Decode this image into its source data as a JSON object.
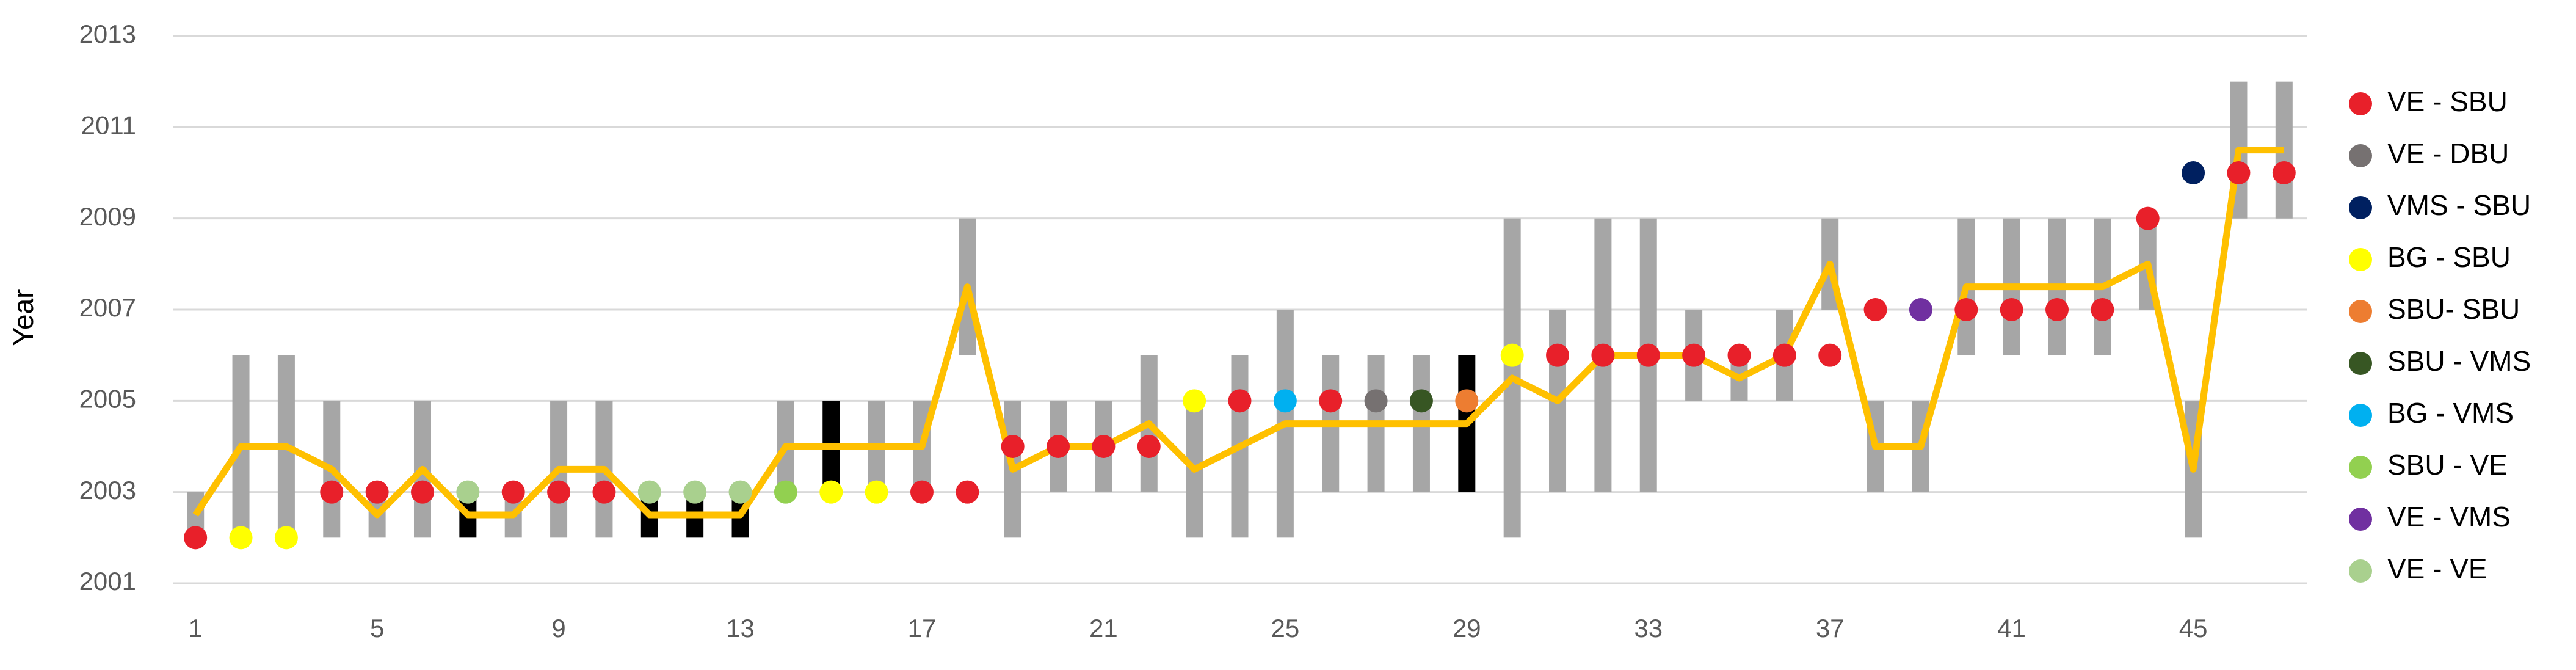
{
  "chart_data": {
    "type": "scatter",
    "y_label": "Year",
    "x": [
      1,
      2,
      3,
      4,
      5,
      6,
      7,
      8,
      9,
      10,
      11,
      12,
      13,
      14,
      15,
      16,
      17,
      18,
      19,
      20,
      21,
      22,
      23,
      24,
      25,
      26,
      27,
      28,
      29,
      30,
      31,
      32,
      33,
      34,
      35,
      36,
      37,
      38,
      39,
      40,
      41,
      42,
      43,
      44,
      45,
      46,
      47
    ],
    "xlim": [
      0.5,
      47.5
    ],
    "xticks": [
      1,
      5,
      9,
      13,
      17,
      21,
      25,
      29,
      33,
      37,
      41,
      45
    ],
    "ylim": [
      2001,
      2013
    ],
    "yticks": [
      2001,
      2003,
      2005,
      2007,
      2009,
      2011,
      2013
    ],
    "grid": true,
    "legend": "right",
    "ranges": {
      "low": [
        2002,
        2002,
        2002,
        2002,
        2002,
        2002,
        2002,
        2002,
        2002,
        2002,
        2002,
        2002,
        2002,
        2003,
        2003,
        2003,
        2003,
        2006,
        2002,
        2003,
        2003,
        2003,
        2002,
        2002,
        2002,
        2003,
        2003,
        2003,
        2003,
        2002,
        2003,
        2003,
        2003,
        2005,
        2005,
        2005,
        2007,
        2003,
        2003,
        2006,
        2006,
        2006,
        2006,
        2007,
        2002,
        2009,
        2009
      ],
      "high": [
        2003,
        2006,
        2006,
        2005,
        2003,
        2005,
        2003,
        2003,
        2005,
        2005,
        2003,
        2003,
        2003,
        2005,
        2005,
        2005,
        2005,
        2009,
        2005,
        2005,
        2005,
        2006,
        2005,
        2006,
        2007,
        2006,
        2006,
        2006,
        2006,
        2009,
        2007,
        2009,
        2009,
        2007,
        2006,
        2007,
        2009,
        2005,
        2005,
        2009,
        2009,
        2009,
        2009,
        2009,
        2005,
        2012,
        2012
      ],
      "colors": [
        "#a6a6a6",
        "#a6a6a6",
        "#a6a6a6",
        "#a6a6a6",
        "#a6a6a6",
        "#a6a6a6",
        "#000000",
        "#a6a6a6",
        "#a6a6a6",
        "#a6a6a6",
        "#000000",
        "#000000",
        "#000000",
        "#a6a6a6",
        "#000000",
        "#a6a6a6",
        "#a6a6a6",
        "#a6a6a6",
        "#a6a6a6",
        "#a6a6a6",
        "#a6a6a6",
        "#a6a6a6",
        "#a6a6a6",
        "#a6a6a6",
        "#a6a6a6",
        "#a6a6a6",
        "#a6a6a6",
        "#a6a6a6",
        "#000000",
        "#a6a6a6",
        "#a6a6a6",
        "#a6a6a6",
        "#a6a6a6",
        "#a6a6a6",
        "#a6a6a6",
        "#a6a6a6",
        "#a6a6a6",
        "#a6a6a6",
        "#a6a6a6",
        "#a6a6a6",
        "#a6a6a6",
        "#a6a6a6",
        "#a6a6a6",
        "#a6a6a6",
        "#a6a6a6",
        "#a6a6a6",
        "#a6a6a6"
      ]
    },
    "line": {
      "color": "#ffc000",
      "values": [
        2002.5,
        2004,
        2004,
        2003.5,
        2002.5,
        2003.5,
        2002.5,
        2002.5,
        2003.5,
        2003.5,
        2002.5,
        2002.5,
        2002.5,
        2004,
        2004,
        2004,
        2004,
        2007.5,
        2003.5,
        2004,
        2004,
        2004.5,
        2003.5,
        2004,
        2004.5,
        2004.5,
        2004.5,
        2004.5,
        2004.5,
        2005.5,
        2005,
        2006,
        2006,
        2006,
        2005.5,
        2006,
        2008,
        2004,
        2004,
        2007.5,
        2007.5,
        2007.5,
        2007.5,
        2008,
        2003.5,
        2010.5,
        2010.5
      ]
    },
    "series": [
      {
        "name": "VE - SBU",
        "color": "#e8202a",
        "x": [
          1,
          4,
          5,
          6,
          8,
          9,
          10,
          17,
          18,
          19,
          20,
          21,
          22,
          24,
          26,
          31,
          32,
          33,
          34,
          35,
          36,
          37,
          38,
          40,
          41,
          42,
          43,
          44,
          46,
          47
        ],
        "values": [
          2002,
          2003,
          2003,
          2003,
          2003,
          2003,
          2003,
          2003,
          2003,
          2004,
          2004,
          2004,
          2004,
          2005,
          2005,
          2006,
          2006,
          2006,
          2006,
          2006,
          2006,
          2006,
          2007,
          2007,
          2007,
          2007,
          2007,
          2009,
          2010,
          2010
        ]
      },
      {
        "name": "VE - DBU",
        "color": "#767171",
        "x": [
          27
        ],
        "values": [
          2005
        ]
      },
      {
        "name": "VMS - SBU",
        "color": "#002060",
        "x": [
          45
        ],
        "values": [
          2010
        ]
      },
      {
        "name": "BG - SBU",
        "color": "#ffff00",
        "x": [
          2,
          3,
          15,
          16,
          23,
          30
        ],
        "values": [
          2002,
          2002,
          2003,
          2003,
          2005,
          2006
        ]
      },
      {
        "name": "SBU- SBU",
        "color": "#ed7d31",
        "x": [
          29
        ],
        "values": [
          2005
        ]
      },
      {
        "name": "SBU - VMS",
        "color": "#375623",
        "x": [
          28
        ],
        "values": [
          2005
        ]
      },
      {
        "name": "BG - VMS",
        "color": "#00b0f0",
        "x": [
          25
        ],
        "values": [
          2005
        ]
      },
      {
        "name": "SBU - VE",
        "color": "#92d050",
        "x": [
          14
        ],
        "values": [
          2003
        ]
      },
      {
        "name": "VE - VMS",
        "color": "#7030a0",
        "x": [
          39
        ],
        "values": [
          2007
        ]
      },
      {
        "name": "VE - VE",
        "color": "#a9d08e",
        "x": [
          7,
          11,
          12,
          13
        ],
        "values": [
          2003,
          2003,
          2003,
          2003
        ]
      }
    ]
  }
}
